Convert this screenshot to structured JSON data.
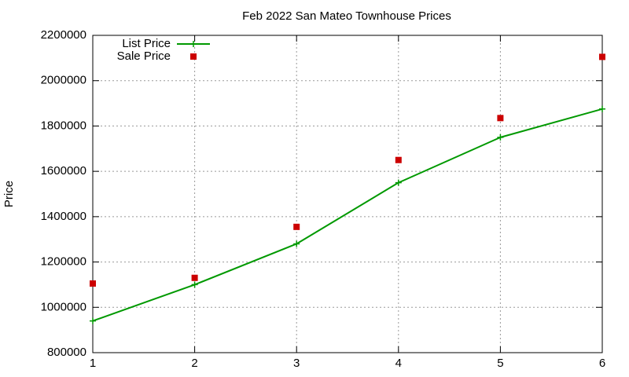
{
  "chart_data": {
    "type": "line",
    "title": "Feb 2022 San Mateo Townhouse Prices",
    "y_label": "Price",
    "x": [
      1,
      2,
      3,
      4,
      5,
      6
    ],
    "series": [
      {
        "name": "List Price",
        "color": "#009900",
        "mode": "linespoints",
        "values": [
          940000,
          1100000,
          1280000,
          1550000,
          1750000,
          1875000
        ]
      },
      {
        "name": "Sale Price",
        "color": "#cc0000",
        "mode": "points",
        "values": [
          1105000,
          1130000,
          1355000,
          1650000,
          1835000,
          2105000
        ]
      }
    ],
    "xlim": [
      1,
      6
    ],
    "xticks": [
      1,
      2,
      3,
      4,
      5,
      6
    ],
    "ylim": [
      800000,
      2200000
    ],
    "yticks": [
      800000,
      1000000,
      1200000,
      1400000,
      1600000,
      1800000,
      2000000,
      2200000
    ],
    "grid": true,
    "legend": "top-left"
  }
}
